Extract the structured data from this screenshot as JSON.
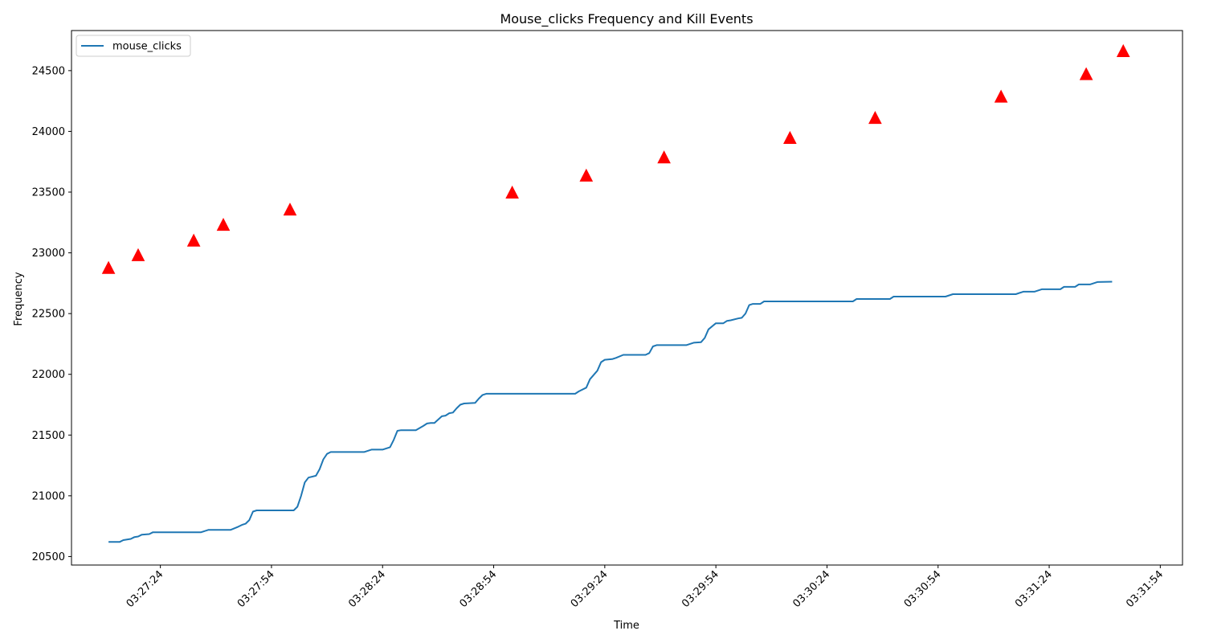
{
  "chart_data": {
    "type": "line",
    "title": "Mouse_clicks Frequency and Kill Events",
    "xlabel": "Time",
    "ylabel": "Frequency",
    "ylim": [
      20430,
      24830
    ],
    "xlim": [
      "03:27:00",
      "03:32:00"
    ],
    "x_ticks": [
      "03:27:24",
      "03:27:54",
      "03:28:24",
      "03:28:54",
      "03:29:24",
      "03:29:54",
      "03:30:24",
      "03:30:54",
      "03:31:24",
      "03:31:54"
    ],
    "y_ticks": [
      20500,
      21000,
      21500,
      22000,
      22500,
      23000,
      23500,
      24000,
      24500
    ],
    "grid": false,
    "legend_position": "upper-left",
    "series": [
      {
        "name": "mouse_clicks",
        "type": "line",
        "color": "#1f77b4",
        "points": [
          [
            "03:27:10",
            20620
          ],
          [
            "03:27:13",
            20620
          ],
          [
            "03:27:14",
            20635
          ],
          [
            "03:27:16",
            20645
          ],
          [
            "03:27:17",
            20660
          ],
          [
            "03:27:18",
            20665
          ],
          [
            "03:27:19",
            20680
          ],
          [
            "03:27:21",
            20685
          ],
          [
            "03:27:22",
            20700
          ],
          [
            "03:27:35",
            20700
          ],
          [
            "03:27:37",
            20720
          ],
          [
            "03:27:43",
            20720
          ],
          [
            "03:27:45",
            20745
          ],
          [
            "03:27:46",
            20760
          ],
          [
            "03:27:47",
            20770
          ],
          [
            "03:27:48",
            20800
          ],
          [
            "03:27:49",
            20870
          ],
          [
            "03:27:50",
            20880
          ],
          [
            "03:28:00",
            20880
          ],
          [
            "03:28:01",
            20910
          ],
          [
            "03:28:02",
            21000
          ],
          [
            "03:28:03",
            21110
          ],
          [
            "03:28:04",
            21150
          ],
          [
            "03:28:06",
            21165
          ],
          [
            "03:28:07",
            21220
          ],
          [
            "03:28:08",
            21300
          ],
          [
            "03:28:09",
            21345
          ],
          [
            "03:28:10",
            21360
          ],
          [
            "03:28:19",
            21360
          ],
          [
            "03:28:21",
            21380
          ],
          [
            "03:28:24",
            21380
          ],
          [
            "03:28:26",
            21400
          ],
          [
            "03:28:27",
            21460
          ],
          [
            "03:28:28",
            21535
          ],
          [
            "03:28:29",
            21540
          ],
          [
            "03:28:33",
            21540
          ],
          [
            "03:28:35",
            21575
          ],
          [
            "03:28:36",
            21595
          ],
          [
            "03:28:37",
            21600
          ],
          [
            "03:28:38",
            21600
          ],
          [
            "03:28:40",
            21655
          ],
          [
            "03:28:41",
            21660
          ],
          [
            "03:28:42",
            21680
          ],
          [
            "03:28:43",
            21685
          ],
          [
            "03:28:44",
            21720
          ],
          [
            "03:28:45",
            21750
          ],
          [
            "03:28:46",
            21760
          ],
          [
            "03:28:49",
            21765
          ],
          [
            "03:28:50",
            21800
          ],
          [
            "03:28:51",
            21830
          ],
          [
            "03:28:52",
            21840
          ],
          [
            "03:29:16",
            21840
          ],
          [
            "03:29:17",
            21860
          ],
          [
            "03:29:19",
            21890
          ],
          [
            "03:29:20",
            21960
          ],
          [
            "03:29:22",
            22030
          ],
          [
            "03:29:23",
            22100
          ],
          [
            "03:29:24",
            22120
          ],
          [
            "03:29:26",
            22125
          ],
          [
            "03:29:27",
            22135
          ],
          [
            "03:29:29",
            22160
          ],
          [
            "03:29:35",
            22160
          ],
          [
            "03:29:36",
            22175
          ],
          [
            "03:29:37",
            22230
          ],
          [
            "03:29:38",
            22240
          ],
          [
            "03:29:46",
            22240
          ],
          [
            "03:29:48",
            22260
          ],
          [
            "03:29:50",
            22265
          ],
          [
            "03:29:51",
            22300
          ],
          [
            "03:29:52",
            22370
          ],
          [
            "03:29:54",
            22420
          ],
          [
            "03:29:56",
            22420
          ],
          [
            "03:29:57",
            22440
          ],
          [
            "03:29:58",
            22445
          ],
          [
            "03:30:00",
            22460
          ],
          [
            "03:30:01",
            22465
          ],
          [
            "03:30:02",
            22500
          ],
          [
            "03:30:03",
            22570
          ],
          [
            "03:30:04",
            22580
          ],
          [
            "03:30:06",
            22580
          ],
          [
            "03:30:07",
            22600
          ],
          [
            "03:30:31",
            22600
          ],
          [
            "03:30:32",
            22620
          ],
          [
            "03:30:41",
            22620
          ],
          [
            "03:30:42",
            22640
          ],
          [
            "03:30:56",
            22640
          ],
          [
            "03:30:58",
            22660
          ],
          [
            "03:31:15",
            22660
          ],
          [
            "03:31:17",
            22680
          ],
          [
            "03:31:20",
            22680
          ],
          [
            "03:31:22",
            22700
          ],
          [
            "03:31:27",
            22700
          ],
          [
            "03:31:28",
            22720
          ],
          [
            "03:31:31",
            22720
          ],
          [
            "03:31:32",
            22740
          ],
          [
            "03:31:35",
            22740
          ],
          [
            "03:31:37",
            22760
          ],
          [
            "03:31:41",
            22762
          ]
        ]
      },
      {
        "name": "",
        "type": "scatter",
        "marker": "triangle-up",
        "color": "#ff0000",
        "points": [
          [
            "03:27:10",
            22870
          ],
          [
            "03:27:18",
            22975
          ],
          [
            "03:27:33",
            23095
          ],
          [
            "03:27:41",
            23225
          ],
          [
            "03:27:59",
            23350
          ],
          [
            "03:28:59",
            23490
          ],
          [
            "03:29:19",
            23630
          ],
          [
            "03:29:40",
            23780
          ],
          [
            "03:30:14",
            23940
          ],
          [
            "03:30:37",
            24105
          ],
          [
            "03:31:11",
            24280
          ],
          [
            "03:31:34",
            24465
          ],
          [
            "03:31:44",
            24655
          ]
        ]
      }
    ],
    "legend": [
      "mouse_clicks"
    ]
  }
}
